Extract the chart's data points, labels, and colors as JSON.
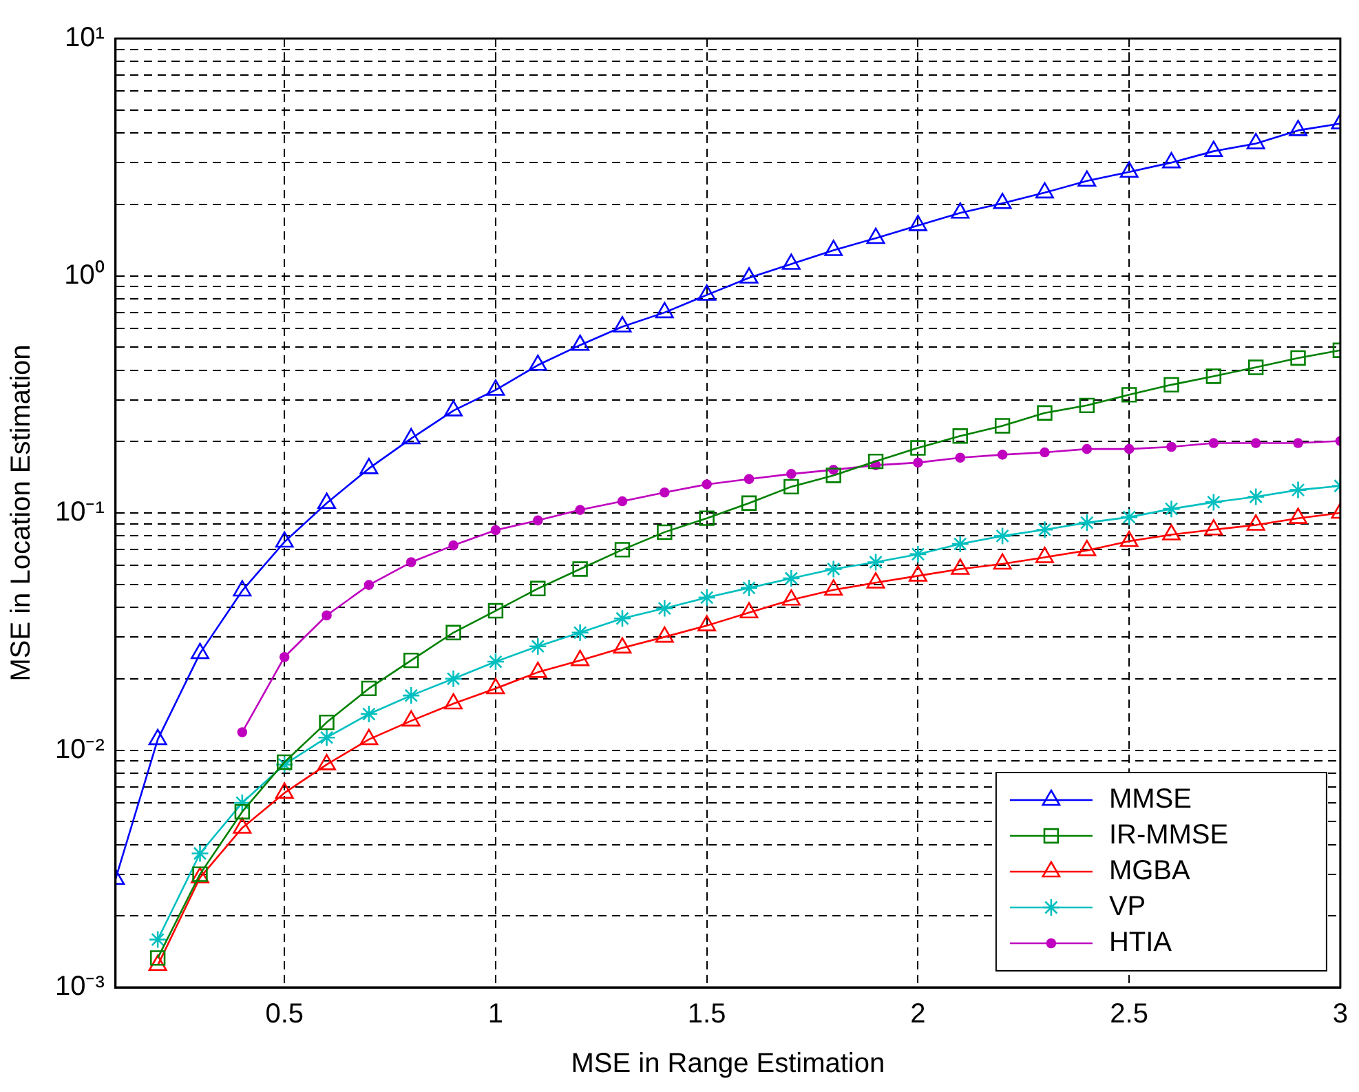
{
  "chart_data": {
    "type": "line",
    "xlabel": "MSE in Range Estimation",
    "ylabel": "MSE in Location Estimation",
    "log": "y",
    "grid": true,
    "legend": "bottom right",
    "line_style": "solid",
    "x": [
      0.1,
      0.2,
      0.3,
      0.4,
      0.5,
      0.6,
      0.7,
      0.8,
      0.9,
      1.0,
      1.1,
      1.2,
      1.3,
      1.4,
      1.5,
      1.6,
      1.7,
      1.8,
      1.9,
      2.0,
      2.1,
      2.2,
      2.3,
      2.4,
      2.5,
      2.6,
      2.7,
      2.8,
      2.9,
      3.0
    ],
    "xlim": [
      0.1,
      3
    ],
    "xticks": [
      0.5,
      1,
      1.5,
      2,
      2.5,
      3
    ],
    "ylim": [
      0.001,
      10
    ],
    "yticks": [
      {
        "value": 0.001,
        "label": "10⁻³"
      },
      {
        "value": 0.002,
        "label": null
      },
      {
        "value": 0.003,
        "label": null
      },
      {
        "value": 0.004,
        "label": null
      },
      {
        "value": 0.005,
        "label": null
      },
      {
        "value": 0.006,
        "label": null
      },
      {
        "value": 0.007,
        "label": null
      },
      {
        "value": 0.008,
        "label": null
      },
      {
        "value": 0.009,
        "label": null
      },
      {
        "value": 0.01,
        "label": "10⁻²"
      },
      {
        "value": 0.02,
        "label": null
      },
      {
        "value": 0.03,
        "label": null
      },
      {
        "value": 0.04,
        "label": null
      },
      {
        "value": 0.05,
        "label": null
      },
      {
        "value": 0.06,
        "label": null
      },
      {
        "value": 0.07,
        "label": null
      },
      {
        "value": 0.08,
        "label": null
      },
      {
        "value": 0.09,
        "label": null
      },
      {
        "value": 0.1,
        "label": "10⁻¹"
      },
      {
        "value": 0.2,
        "label": null
      },
      {
        "value": 0.3,
        "label": null
      },
      {
        "value": 0.4,
        "label": null
      },
      {
        "value": 0.5,
        "label": null
      },
      {
        "value": 0.6,
        "label": null
      },
      {
        "value": 0.7,
        "label": null
      },
      {
        "value": 0.8,
        "label": null
      },
      {
        "value": 0.9,
        "label": null
      },
      {
        "value": 1,
        "label": "10⁰"
      },
      {
        "value": 2,
        "label": null
      },
      {
        "value": 3,
        "label": null
      },
      {
        "value": 4,
        "label": null
      },
      {
        "value": 5,
        "label": null
      },
      {
        "value": 6,
        "label": null
      },
      {
        "value": 7,
        "label": null
      },
      {
        "value": 8,
        "label": null
      },
      {
        "value": 9,
        "label": null
      },
      {
        "value": 10,
        "label": "10¹"
      }
    ],
    "series": [
      {
        "name": "MMSE",
        "color": "#0000ff",
        "marker": "triangle",
        "values": [
          0.00286,
          0.0111,
          0.0256,
          0.047,
          0.0755,
          0.11,
          0.154,
          0.206,
          0.27,
          0.33,
          0.42,
          0.51,
          0.61,
          0.7,
          0.83,
          0.98,
          1.12,
          1.28,
          1.44,
          1.63,
          1.84,
          2.02,
          2.24,
          2.51,
          2.74,
          3.0,
          3.35,
          3.61,
          4.1,
          4.38
        ]
      },
      {
        "name": "IR-MMSE",
        "color": "#008000",
        "marker": "square",
        "x": [
          0.2,
          0.3,
          0.4,
          0.5,
          0.6,
          0.7,
          0.8,
          0.9,
          1.0,
          1.1,
          1.2,
          1.3,
          1.4,
          1.5,
          1.6,
          1.7,
          1.8,
          1.9,
          2.0,
          2.1,
          2.2,
          2.3,
          2.4,
          2.5,
          2.6,
          2.7,
          2.8,
          2.9,
          3.0
        ],
        "values": [
          0.00133,
          0.003,
          0.0055,
          0.0089,
          0.0131,
          0.0182,
          0.0239,
          0.0313,
          0.0387,
          0.048,
          0.058,
          0.07,
          0.083,
          0.095,
          0.11,
          0.129,
          0.144,
          0.165,
          0.188,
          0.211,
          0.233,
          0.264,
          0.284,
          0.315,
          0.347,
          0.377,
          0.411,
          0.45,
          0.485
        ]
      },
      {
        "name": "MGBA",
        "color": "#ff0000",
        "marker": "triangle",
        "x": [
          0.2,
          0.3,
          0.4,
          0.5,
          0.6,
          0.7,
          0.8,
          0.9,
          1.0,
          1.1,
          1.2,
          1.3,
          1.4,
          1.5,
          1.6,
          1.7,
          1.8,
          1.9,
          2.0,
          2.1,
          2.2,
          2.3,
          2.4,
          2.5,
          2.6,
          2.7,
          2.8,
          2.9,
          3.0
        ],
        "values": [
          0.00124,
          0.0029,
          0.0047,
          0.0066,
          0.0087,
          0.0111,
          0.0133,
          0.0157,
          0.0182,
          0.0213,
          0.0239,
          0.027,
          0.03,
          0.0335,
          0.038,
          0.043,
          0.0474,
          0.0508,
          0.0543,
          0.058,
          0.061,
          0.065,
          0.0695,
          0.076,
          0.081,
          0.085,
          0.089,
          0.095,
          0.1
        ]
      },
      {
        "name": "VP",
        "color": "#00bfbf",
        "marker": "cross",
        "x": [
          0.2,
          0.3,
          0.4,
          0.5,
          0.6,
          0.7,
          0.8,
          0.9,
          1.0,
          1.1,
          1.2,
          1.3,
          1.4,
          1.5,
          1.6,
          1.7,
          1.8,
          1.9,
          2.0,
          2.1,
          2.2,
          2.3,
          2.4,
          2.5,
          2.6,
          2.7,
          2.8,
          2.9,
          3.0
        ],
        "values": [
          0.00159,
          0.00367,
          0.006,
          0.0087,
          0.0113,
          0.0142,
          0.017,
          0.02,
          0.0236,
          0.0274,
          0.0313,
          0.0359,
          0.0396,
          0.044,
          0.0483,
          0.053,
          0.058,
          0.062,
          0.067,
          0.074,
          0.08,
          0.085,
          0.091,
          0.096,
          0.104,
          0.111,
          0.117,
          0.125,
          0.13
        ]
      },
      {
        "name": "HTIA",
        "color": "#bf00bf",
        "marker": "circle",
        "x": [
          0.4,
          0.5,
          0.6,
          0.7,
          0.8,
          0.9,
          1.0,
          1.1,
          1.2,
          1.3,
          1.4,
          1.5,
          1.6,
          1.7,
          1.8,
          1.9,
          2.0,
          2.1,
          2.2,
          2.3,
          2.4,
          2.5,
          2.6,
          2.7,
          2.8,
          2.9,
          3.0
        ],
        "values": [
          0.0119,
          0.0247,
          0.037,
          0.0497,
          0.062,
          0.073,
          0.0846,
          0.093,
          0.103,
          0.112,
          0.122,
          0.132,
          0.139,
          0.146,
          0.152,
          0.159,
          0.163,
          0.171,
          0.176,
          0.18,
          0.186,
          0.186,
          0.19,
          0.197,
          0.197,
          0.197,
          0.201
        ]
      }
    ]
  }
}
